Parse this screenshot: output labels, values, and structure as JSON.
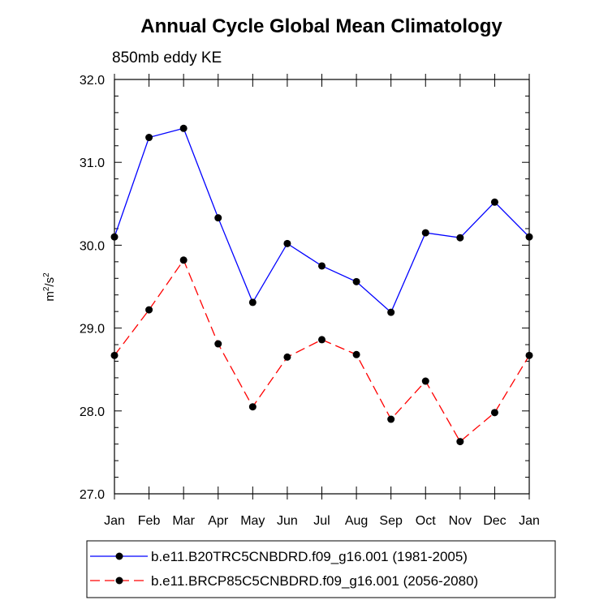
{
  "chart_data": {
    "type": "line",
    "title": "Annual Cycle Global Mean Climatology",
    "subtitle": "850mb eddy KE",
    "ylabel": "m2/s2",
    "ylabel_base": "m",
    "ylabel_exp1": "2",
    "ylabel_sep": "/s",
    "ylabel_exp2": "2",
    "xlabel": "",
    "categories": [
      "Jan",
      "Feb",
      "Mar",
      "Apr",
      "May",
      "Jun",
      "Jul",
      "Aug",
      "Sep",
      "Oct",
      "Nov",
      "Dec",
      "Jan"
    ],
    "ylim": [
      27.0,
      32.0
    ],
    "yticks": [
      "27.0",
      "28.0",
      "29.0",
      "30.0",
      "31.0",
      "32.0"
    ],
    "yticks_values": [
      27.0,
      28.0,
      29.0,
      30.0,
      31.0,
      32.0
    ],
    "series": [
      {
        "name": "b.e11.B20TRC5CNBDRD.f09_g16.001 (1981-2005)",
        "color": "#0000ff",
        "dash": "solid",
        "values": [
          30.1,
          31.3,
          31.41,
          30.33,
          29.31,
          30.02,
          29.75,
          29.56,
          29.19,
          30.15,
          30.09,
          30.52,
          30.1
        ]
      },
      {
        "name": "b.e11.BRCP85C5CNBDRD.f09_g16.001 (2056-2080)",
        "color": "#ff0000",
        "dash": "dashed",
        "values": [
          28.67,
          29.22,
          29.82,
          28.81,
          28.05,
          28.65,
          28.86,
          28.68,
          27.9,
          28.36,
          27.63,
          27.98,
          28.67
        ]
      }
    ],
    "marker_color": "#000000",
    "grid": false,
    "legend_position": "bottom"
  }
}
